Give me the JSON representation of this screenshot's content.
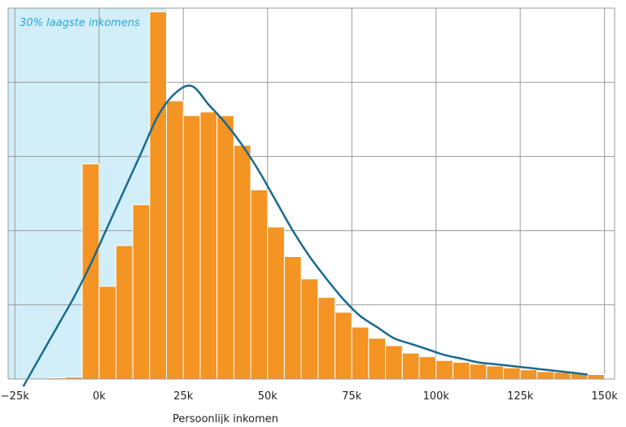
{
  "chart_data": {
    "type": "bar",
    "title": "",
    "xlabel": "Persoonlijk inkomen",
    "ylabel": "",
    "xlim": [
      -27000,
      153000
    ],
    "ylim": [
      0,
      100
    ],
    "grid": true,
    "x_ticks": [
      -25000,
      0,
      25000,
      50000,
      75000,
      100000,
      125000,
      150000
    ],
    "x_tick_labels": [
      "−25k",
      "0k",
      "25k",
      "50k",
      "75k",
      "100k",
      "125k",
      "150k"
    ],
    "y_gridlines": [
      0,
      20,
      40,
      60,
      80,
      100
    ],
    "bin_width": 5000,
    "bin_starts": [
      -15000,
      -10000,
      -5000,
      0,
      5000,
      10000,
      15000,
      20000,
      25000,
      30000,
      35000,
      40000,
      45000,
      50000,
      55000,
      60000,
      65000,
      70000,
      75000,
      80000,
      85000,
      90000,
      95000,
      100000,
      105000,
      110000,
      115000,
      120000,
      125000,
      130000,
      135000,
      140000,
      145000
    ],
    "values": [
      0.3,
      0.5,
      58,
      25,
      36,
      47,
      99,
      75,
      71,
      72,
      71,
      63,
      51,
      41,
      33,
      27,
      22,
      18,
      14,
      11,
      9,
      7,
      6,
      5,
      4.5,
      4,
      3.5,
      3,
      2.5,
      2,
      1.8,
      1.5,
      1.2
    ],
    "curve": {
      "x": [
        -22500,
        -17500,
        -12500,
        -7500,
        -2500,
        2500,
        7500,
        12500,
        17500,
        22500,
        27500,
        32500,
        37500,
        42500,
        47500,
        52500,
        57500,
        62500,
        67500,
        72500,
        77500,
        82500,
        87500,
        92500,
        97500,
        102500,
        107500,
        112500,
        117500,
        122500,
        127500,
        132500,
        137500,
        142500,
        145000
      ],
      "y": [
        -2,
        6,
        14,
        22,
        31,
        41,
        51,
        61,
        71,
        77,
        79,
        74,
        69,
        63,
        56,
        48,
        40,
        33,
        27,
        21.5,
        17,
        14,
        11,
        9.5,
        8,
        6.5,
        5.5,
        4.5,
        4,
        3.5,
        3,
        2.5,
        2,
        1.5,
        1.2
      ]
    },
    "highlight": {
      "from": -27000,
      "to": 20000,
      "label": "30% laagste inkomens"
    },
    "colors": {
      "bar": "#f39423",
      "bar_edge": "#ffffff",
      "curve": "#1a6a8f",
      "highlight": "#d2eef9",
      "annotation": "#2aa6d6",
      "grid": "#9a9a9a"
    }
  }
}
